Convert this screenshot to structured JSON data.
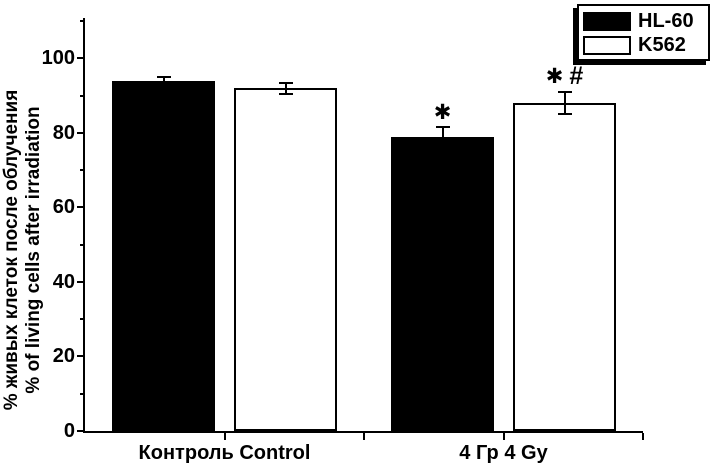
{
  "chart_data": {
    "type": "bar",
    "title": "",
    "categories": [
      "Контроль Control",
      "4 Гр 4 Gy"
    ],
    "series": [
      {
        "name": "HL-60",
        "fill": "#000000",
        "values": [
          94,
          79
        ],
        "errors": [
          1,
          2.5
        ],
        "annotations": [
          "",
          "*"
        ]
      },
      {
        "name": "K562",
        "fill": "#ffffff",
        "values": [
          92,
          88
        ],
        "errors": [
          1.5,
          3
        ],
        "annotations": [
          "",
          "* #"
        ]
      }
    ],
    "ylabel_line1": "% живых клеток после облучения",
    "ylabel_line2": "% of living cells after irradiation",
    "xlabel": "",
    "ylim": [
      0,
      110
    ],
    "ytick_major": [
      0,
      20,
      40,
      60,
      80,
      100
    ],
    "ytick_minor": [
      10,
      30,
      50,
      70,
      90,
      110
    ],
    "grid": false,
    "legend_position": "top-right",
    "colors": {
      "axis": "#000000",
      "background": "#ffffff",
      "bar_black": "#000000",
      "bar_white": "#ffffff"
    }
  }
}
